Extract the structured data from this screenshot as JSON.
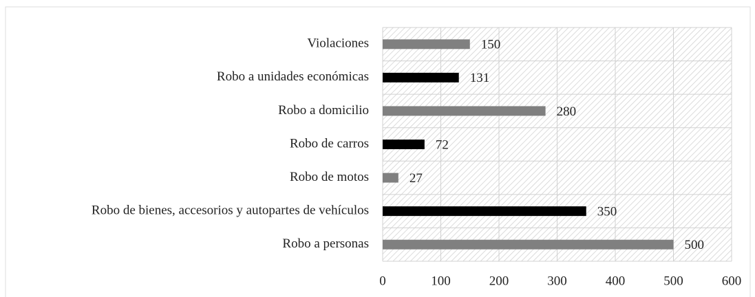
{
  "chart_data": {
    "type": "bar",
    "orientation": "horizontal",
    "categories": [
      "Violaciones",
      "Robo a unidades económicas",
      "Robo a domicilio",
      "Robo de carros",
      "Robo de motos",
      "Robo de bienes, accesorios y autopartes de vehículos",
      "Robo a personas"
    ],
    "values": [
      150,
      131,
      280,
      72,
      27,
      350,
      500
    ],
    "colors": [
      "#808080",
      "#000000",
      "#808080",
      "#000000",
      "#808080",
      "#000000",
      "#808080"
    ],
    "xlim": [
      0,
      600
    ],
    "xticks": [
      0,
      100,
      200,
      300,
      400,
      500,
      600
    ],
    "grid": true
  }
}
